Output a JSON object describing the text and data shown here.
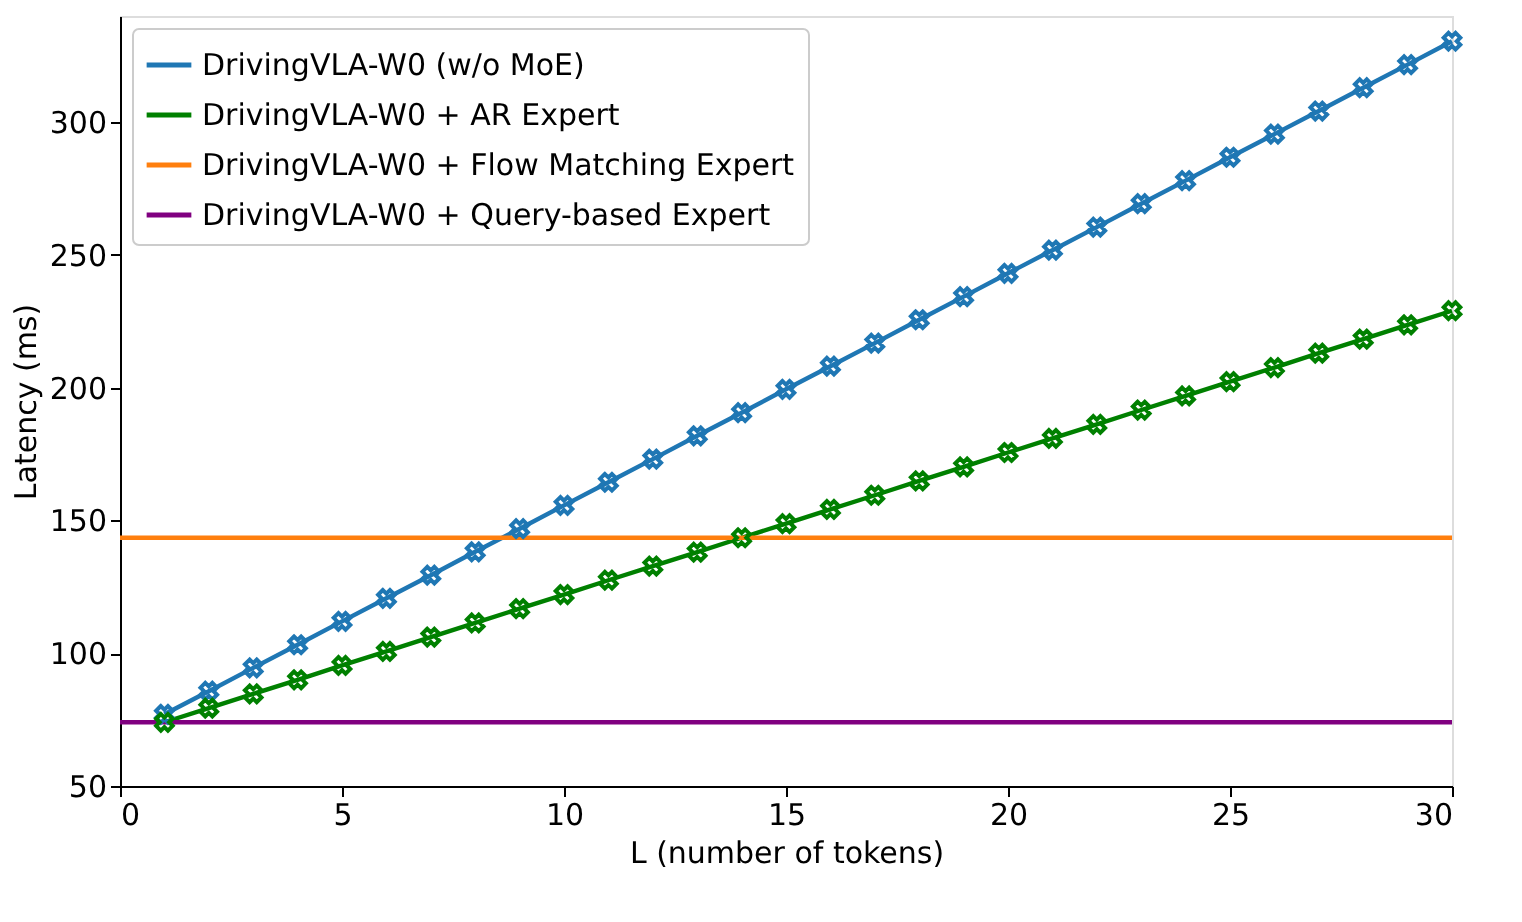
{
  "chart_data": {
    "type": "line",
    "xlabel": "L (number of tokens)",
    "ylabel": "Latency (ms)",
    "xlim": [
      0,
      30
    ],
    "xticks": [
      0,
      5,
      10,
      15,
      20,
      25,
      30
    ],
    "ylim": [
      50,
      340
    ],
    "yticks": [
      50,
      100,
      150,
      200,
      250,
      300
    ],
    "grid": false,
    "legend": "top left",
    "line_style": "solid",
    "series": [
      {
        "name": "DrivingVLA-W0 (w/o MoE)",
        "color": "#1f77b4",
        "marker": "cross",
        "x": [
          1,
          2,
          3,
          4,
          5,
          6,
          7,
          8,
          9,
          10,
          11,
          12,
          13,
          14,
          15,
          16,
          17,
          18,
          19,
          20,
          21,
          22,
          23,
          24,
          25,
          26,
          27,
          28,
          29,
          30
        ],
        "values": [
          77.0,
          85.7,
          94.5,
          103.2,
          112.0,
          120.7,
          129.4,
          138.2,
          146.9,
          155.7,
          164.4,
          173.1,
          181.9,
          190.6,
          199.4,
          208.1,
          216.8,
          225.6,
          234.3,
          243.1,
          251.8,
          260.5,
          269.3,
          278.0,
          286.8,
          295.5,
          304.2,
          313.0,
          321.7,
          330.5
        ]
      },
      {
        "name": "DrivingVLA-W0 + AR Expert",
        "color": "#008000",
        "marker": "cross",
        "x": [
          1,
          2,
          3,
          4,
          5,
          6,
          7,
          8,
          9,
          10,
          11,
          12,
          13,
          14,
          15,
          16,
          17,
          18,
          19,
          20,
          21,
          22,
          23,
          24,
          25,
          26,
          27,
          28,
          29,
          30
        ],
        "values": [
          74.0,
          79.3,
          84.7,
          90.0,
          95.4,
          100.7,
          106.1,
          111.4,
          116.8,
          122.1,
          127.5,
          132.8,
          138.1,
          143.5,
          148.8,
          154.2,
          159.5,
          164.9,
          170.2,
          175.6,
          180.9,
          186.2,
          191.6,
          196.9,
          202.3,
          207.6,
          213.0,
          218.3,
          223.7,
          229.0
        ]
      },
      {
        "name": "DrivingVLA-W0 + Flow Matching Expert",
        "color": "#ff7f0e",
        "marker": "none",
        "x": [
          0,
          30
        ],
        "values": [
          143.5,
          143.5
        ]
      },
      {
        "name": "DrivingVLA-W0 + Query-based Expert",
        "color": "#800080",
        "marker": "none",
        "x": [
          0,
          30
        ],
        "values": [
          74.0,
          74.0
        ]
      }
    ]
  }
}
